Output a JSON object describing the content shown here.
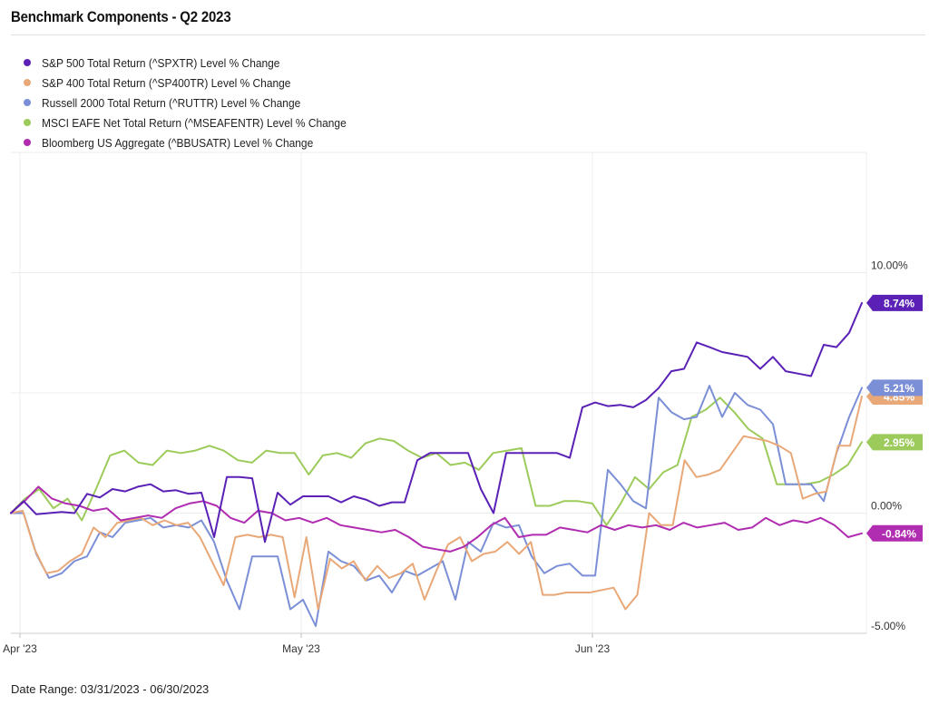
{
  "title": "Benchmark Components - Q2 2023",
  "footer": "Date Range: 03/31/2023 - 06/30/2023",
  "chart_data": {
    "type": "line",
    "title": "Benchmark Components - Q2 2023",
    "xlabel": "",
    "ylabel": "",
    "x_ticks": [
      "Apr '23",
      "May '23",
      "Jun '23"
    ],
    "y_ticks": [
      "10.00%",
      "0.00%",
      "-5.00%"
    ],
    "ylim": [
      -5.0,
      15.0
    ],
    "grid": true,
    "legend_position": "top-left",
    "series": [
      {
        "name": "S&P 500 Total Return (^SPXTR) Level % Change",
        "color": "#5b21b6",
        "end_label": "8.74%",
        "values": [
          0.0,
          0.5,
          -0.05,
          0.0,
          0.05,
          0.0,
          0.8,
          0.65,
          1.0,
          0.9,
          1.1,
          1.2,
          0.9,
          0.95,
          0.8,
          0.85,
          -1.0,
          1.5,
          1.5,
          1.45,
          -1.2,
          0.85,
          0.35,
          0.7,
          0.7,
          0.7,
          0.45,
          0.7,
          0.55,
          0.3,
          0.45,
          0.45,
          2.2,
          2.5,
          2.5,
          2.5,
          2.5,
          1.0,
          0.0,
          2.5,
          2.5,
          2.5,
          2.5,
          2.5,
          2.3,
          4.4,
          4.6,
          4.45,
          4.5,
          4.4,
          4.7,
          5.2,
          5.9,
          6.0,
          7.1,
          6.9,
          6.7,
          6.6,
          6.5,
          6.0,
          6.5,
          5.9,
          5.8,
          5.7,
          7.0,
          6.9,
          7.5,
          8.74
        ]
      },
      {
        "name": "S&P 400 Total Return (^SP400TR) Level % Change",
        "color": "#e8a878",
        "end_label": "4.85%",
        "values": [
          0.0,
          0.1,
          -1.5,
          -2.5,
          -2.4,
          -2.0,
          -1.7,
          -0.6,
          -1.0,
          -0.4,
          -0.3,
          -0.2,
          -0.5,
          -0.3,
          -0.5,
          -0.4,
          -1.0,
          -2.0,
          -3.0,
          -1.0,
          -0.9,
          -1.0,
          -0.9,
          -1.0,
          -3.5,
          -1.0,
          -4.0,
          -1.9,
          -2.3,
          -2.0,
          -2.8,
          -2.2,
          -2.7,
          -2.5,
          -2.1,
          -3.6,
          -2.4,
          -1.3,
          -1.0,
          -2.0,
          -1.7,
          -1.6,
          -1.2,
          -1.7,
          -1.2,
          -3.4,
          -3.4,
          -3.3,
          -3.3,
          -3.3,
          -3.2,
          -3.1,
          -4.0,
          -3.4,
          0.0,
          -0.5,
          -0.5,
          2.2,
          1.5,
          1.6,
          1.8,
          2.5,
          3.2,
          3.1,
          3.0,
          2.8,
          2.5,
          0.6,
          0.8,
          0.9,
          2.8,
          2.8,
          4.85
        ]
      },
      {
        "name": "Russell 2000 Total Return (^RUTTR) Level % Change",
        "color": "#7b8fd6",
        "end_label": "5.21%",
        "values": [
          0.0,
          0.0,
          -1.7,
          -2.7,
          -2.5,
          -2.0,
          -1.8,
          -0.8,
          -1.0,
          -0.4,
          -0.3,
          -0.2,
          -0.6,
          -0.5,
          -0.6,
          -0.3,
          -1.2,
          -2.8,
          -4.0,
          -1.8,
          -1.8,
          -1.8,
          -4.0,
          -3.6,
          -4.7,
          -1.6,
          -2.0,
          -2.2,
          -2.8,
          -2.6,
          -3.3,
          -2.4,
          -2.6,
          -2.3,
          -2.0,
          -3.6,
          -1.2,
          -1.6,
          -0.4,
          -0.6,
          -0.5,
          -1.8,
          -2.5,
          -2.2,
          -2.1,
          -2.6,
          -2.6,
          1.8,
          1.2,
          0.5,
          0.2,
          4.8,
          4.2,
          3.9,
          4.0,
          5.3,
          4.0,
          5.0,
          4.5,
          4.3,
          3.7,
          1.2,
          1.2,
          1.2,
          0.5,
          2.5,
          4.0,
          5.21
        ]
      },
      {
        "name": "MSCI EAFE Net Total Return (^MSEAFENTR) Level % Change",
        "color": "#9dcb5b",
        "end_label": "2.95%",
        "values": [
          0.0,
          0.6,
          1.0,
          0.2,
          0.6,
          -0.3,
          1.0,
          2.4,
          2.6,
          2.1,
          2.0,
          2.6,
          2.5,
          2.6,
          2.8,
          2.6,
          2.2,
          2.1,
          2.6,
          2.5,
          2.5,
          1.6,
          2.4,
          2.5,
          2.3,
          2.9,
          3.1,
          3.0,
          2.6,
          2.3,
          2.5,
          2.0,
          2.1,
          1.8,
          2.5,
          2.6,
          2.7,
          0.3,
          0.3,
          0.5,
          0.5,
          0.4,
          -0.5,
          0.4,
          1.5,
          1.0,
          1.7,
          2.0,
          4.0,
          4.3,
          4.8,
          4.2,
          3.5,
          3.1,
          1.2,
          1.2,
          1.2,
          1.3,
          1.6,
          2.0,
          2.95
        ]
      },
      {
        "name": "Bloomberg US Aggregate (^BBUSATR) Level % Change",
        "color": "#b02cb0",
        "end_label": "-0.84%",
        "values": [
          0.0,
          0.5,
          1.1,
          0.6,
          0.4,
          0.3,
          0.1,
          0.2,
          -0.3,
          -0.2,
          -0.1,
          -0.2,
          0.2,
          0.4,
          0.5,
          0.3,
          -0.2,
          -0.4,
          0.1,
          0.0,
          -0.3,
          -0.2,
          -0.4,
          -0.2,
          -0.5,
          -0.6,
          -0.7,
          -0.8,
          -0.7,
          -1.0,
          -1.4,
          -1.5,
          -1.6,
          -1.4,
          -1.0,
          -0.5,
          -0.2,
          -1.0,
          -0.9,
          -0.9,
          -0.6,
          -0.7,
          -0.8,
          -0.5,
          -0.7,
          -0.5,
          -0.6,
          -0.5,
          -0.7,
          -0.4,
          -0.6,
          -0.5,
          -0.4,
          -0.7,
          -0.6,
          -0.2,
          -0.5,
          -0.3,
          -0.4,
          -0.2,
          -0.5,
          -1.0,
          -0.84
        ]
      }
    ]
  }
}
